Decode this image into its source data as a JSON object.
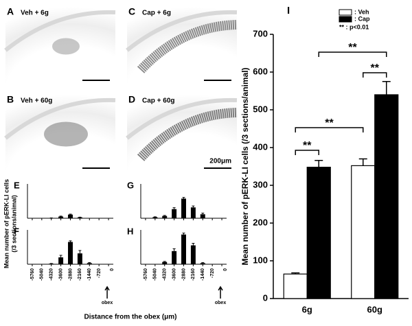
{
  "panels": [
    {
      "letter": "A",
      "label": "Veh + 6g"
    },
    {
      "letter": "C",
      "label": "Cap + 6g"
    },
    {
      "letter": "B",
      "label": "Veh + 60g"
    },
    {
      "letter": "D",
      "label": "Cap + 60g"
    }
  ],
  "scale_bar": "200μm",
  "shared_ylabel": "Mean number of pERK-LI cells",
  "shared_ylabel2": "(/3 sections/animal)",
  "shared_xlabel": "Distance from the obex (μm)",
  "chart_data": [
    {
      "type": "bar",
      "letter": "E",
      "values": [
        0,
        0,
        2,
        15,
        32,
        8,
        0,
        0,
        0
      ],
      "errors": [
        0,
        0,
        1,
        4,
        4,
        2,
        0,
        0,
        0
      ],
      "ylim": [
        0,
        300
      ],
      "color": "#000000"
    },
    {
      "type": "bar",
      "letter": "G",
      "values": [
        0,
        10,
        20,
        80,
        172,
        95,
        35,
        0,
        0
      ],
      "errors": [
        0,
        3,
        5,
        12,
        10,
        12,
        10,
        0,
        0
      ],
      "ylim": [
        0,
        300
      ],
      "color": "#000000"
    },
    {
      "type": "bar",
      "letter": "F",
      "categories": [
        "-5760",
        "-5040",
        "-4320",
        "-3600",
        "-2880",
        "-2160",
        "-1440",
        "-720",
        "0"
      ],
      "x_end_label": "obex",
      "values": [
        0,
        0,
        5,
        60,
        195,
        95,
        10,
        0,
        0
      ],
      "errors": [
        0,
        0,
        2,
        18,
        10,
        25,
        4,
        0,
        0
      ],
      "ylim": [
        0,
        300
      ],
      "color": "#000000"
    },
    {
      "type": "bar",
      "letter": "H",
      "categories": [
        "-5760",
        "-5040",
        "-4320",
        "-3600",
        "-2880",
        "-2160",
        "-1440",
        "-720",
        "0"
      ],
      "x_end_label": "obex",
      "values": [
        0,
        0,
        20,
        115,
        260,
        165,
        10,
        0,
        0
      ],
      "errors": [
        0,
        0,
        5,
        20,
        12,
        18,
        4,
        0,
        0
      ],
      "ylim": [
        0,
        300
      ],
      "color": "#000000"
    },
    {
      "type": "grouped_bar",
      "letter": "I",
      "ylabel": "Mean  number of pERK-LI cells (/3 sections/animal)",
      "categories": [
        "6g",
        "60g"
      ],
      "series": [
        {
          "name": ": Veh",
          "color": "#ffffff",
          "values": [
            65,
            352
          ],
          "errors": [
            3,
            18
          ]
        },
        {
          "name": ": Cap",
          "color": "#000000",
          "values": [
            348,
            540
          ],
          "errors": [
            18,
            35
          ]
        }
      ],
      "legend_note": "** : p<0.01",
      "annotations": [
        "**",
        "**",
        "**",
        "**"
      ],
      "ylim": [
        0,
        700
      ],
      "yticks": [
        0,
        100,
        200,
        300,
        400,
        500,
        600,
        700
      ]
    }
  ]
}
